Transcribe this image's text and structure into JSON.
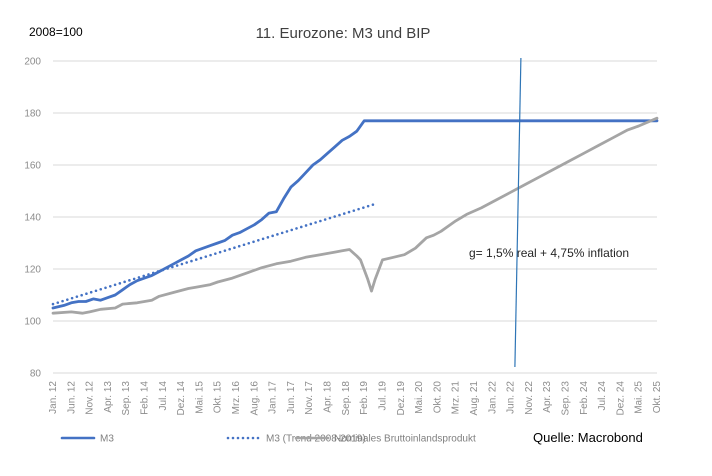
{
  "chart_data": {
    "type": "line",
    "title": "11. Eurozone: M3 und BIP",
    "base_label": "2008=100",
    "ylim": [
      80,
      200
    ],
    "yticks": [
      80,
      100,
      120,
      140,
      160,
      180,
      200
    ],
    "x_tick_labels": [
      "Jan. 12",
      "Jun. 12",
      "Nov. 12",
      "Apr. 13",
      "Sep. 13",
      "Feb. 14",
      "Jul. 14",
      "Dez. 14",
      "Mai. 15",
      "Okt. 15",
      "Mrz. 16",
      "Aug. 16",
      "Jan. 17",
      "Jun. 17",
      "Nov. 17",
      "Apr. 18",
      "Sep. 18",
      "Feb. 19",
      "Jul. 19",
      "Dez. 19",
      "Mai. 20",
      "Okt. 20",
      "Mrz. 21",
      "Aug. 21",
      "Jan. 22",
      "Jun. 22",
      "Nov. 22",
      "Apr. 23",
      "Sep. 23",
      "Feb. 24",
      "Jul. 24",
      "Dez. 24",
      "Mai. 25",
      "Okt. 25"
    ],
    "grid": "horizontal",
    "series": [
      {
        "name": "M3",
        "color": "#4472c4",
        "style": "solid",
        "points": [
          [
            0,
            105
          ],
          [
            3,
            106
          ],
          [
            5,
            107
          ],
          [
            7,
            107.5
          ],
          [
            9,
            107.5
          ],
          [
            11,
            108.5
          ],
          [
            13,
            108
          ],
          [
            15,
            109
          ],
          [
            17,
            110
          ],
          [
            19,
            112
          ],
          [
            21,
            114
          ],
          [
            23,
            115.5
          ],
          [
            25,
            116.5
          ],
          [
            27,
            117.5
          ],
          [
            29,
            119
          ],
          [
            31,
            120.5
          ],
          [
            33,
            122
          ],
          [
            35,
            123.5
          ],
          [
            37,
            125
          ],
          [
            39,
            127
          ],
          [
            41,
            128
          ],
          [
            43,
            129
          ],
          [
            45,
            130
          ],
          [
            47,
            131
          ],
          [
            49,
            133
          ],
          [
            51,
            134
          ],
          [
            53,
            135.5
          ],
          [
            55,
            137
          ],
          [
            57,
            139
          ],
          [
            59,
            141.5
          ],
          [
            61,
            142
          ],
          [
            63,
            147
          ],
          [
            65,
            151.5
          ],
          [
            67,
            154
          ],
          [
            69,
            157
          ],
          [
            71,
            160
          ],
          [
            73,
            162
          ],
          [
            75,
            164.5
          ],
          [
            77,
            167
          ],
          [
            79,
            169.5
          ],
          [
            81,
            171
          ],
          [
            83,
            173
          ],
          [
            85,
            177
          ],
          [
            87,
            177
          ],
          [
            89,
            177
          ],
          [
            91,
            177
          ],
          [
            93,
            177
          ],
          [
            95,
            177
          ],
          [
            97,
            177
          ],
          [
            99,
            177
          ],
          [
            101,
            177
          ],
          [
            103,
            177
          ],
          [
            105,
            177
          ],
          [
            107,
            177
          ],
          [
            109,
            177
          ],
          [
            111,
            177
          ],
          [
            113,
            177
          ],
          [
            115,
            177
          ],
          [
            117,
            177
          ],
          [
            119,
            177
          ],
          [
            121,
            177
          ],
          [
            123,
            177
          ],
          [
            125,
            177
          ],
          [
            127,
            177
          ],
          [
            129,
            177
          ],
          [
            131,
            177
          ],
          [
            133,
            177
          ],
          [
            135,
            177
          ],
          [
            137,
            177
          ],
          [
            139,
            177
          ],
          [
            141,
            177
          ],
          [
            143,
            177
          ],
          [
            145,
            177
          ],
          [
            147,
            177
          ],
          [
            149,
            177
          ],
          [
            151,
            177
          ],
          [
            153,
            177
          ],
          [
            155,
            177
          ],
          [
            157,
            177
          ],
          [
            159,
            177
          ],
          [
            161,
            177
          ],
          [
            163,
            177
          ],
          [
            165,
            177
          ]
        ]
      },
      {
        "name": "M3 (Trend 2008-2019)",
        "color": "#4472c4",
        "style": "dotted",
        "points": [
          [
            0,
            106.5
          ],
          [
            88,
            145
          ]
        ]
      },
      {
        "name": "Nominales Bruttoinlandsprodukt",
        "color": "#a5a5a5",
        "style": "solid",
        "points": [
          [
            0,
            103
          ],
          [
            5,
            103.5
          ],
          [
            8,
            103
          ],
          [
            10,
            103.5
          ],
          [
            13,
            104.5
          ],
          [
            17,
            105
          ],
          [
            19,
            106.5
          ],
          [
            23,
            107
          ],
          [
            27,
            108
          ],
          [
            29,
            109.5
          ],
          [
            33,
            111
          ],
          [
            37,
            112.5
          ],
          [
            39,
            113
          ],
          [
            43,
            114
          ],
          [
            45,
            115
          ],
          [
            49,
            116.5
          ],
          [
            53,
            118.5
          ],
          [
            57,
            120.5
          ],
          [
            61,
            122
          ],
          [
            65,
            123
          ],
          [
            69,
            124.5
          ],
          [
            73,
            125.5
          ],
          [
            77,
            126.5
          ],
          [
            79,
            127
          ],
          [
            81,
            127.5
          ],
          [
            83,
            125
          ],
          [
            84,
            123.5
          ],
          [
            86,
            116
          ],
          [
            87,
            111.5
          ],
          [
            88,
            116
          ],
          [
            90,
            123.5
          ],
          [
            93,
            124.5
          ],
          [
            96,
            125.5
          ],
          [
            99,
            128
          ],
          [
            102,
            132
          ],
          [
            104,
            133
          ],
          [
            106,
            134.5
          ],
          [
            108,
            136.5
          ],
          [
            110,
            138.5
          ],
          [
            113,
            141
          ],
          [
            117,
            143.5
          ],
          [
            121,
            146.5
          ],
          [
            125,
            149.5
          ],
          [
            129,
            152.5
          ],
          [
            133,
            155.5
          ],
          [
            137,
            158.5
          ],
          [
            141,
            161.5
          ],
          [
            145,
            164.5
          ],
          [
            149,
            167.5
          ],
          [
            153,
            170.5
          ],
          [
            157,
            173.5
          ],
          [
            160,
            175
          ],
          [
            165,
            178
          ]
        ]
      }
    ],
    "vline_at_index": 127,
    "annotation": "g= 1,5% real + 4,75% inflation",
    "source": "Quelle: Macrobond",
    "legend_position": "bottom-left"
  }
}
